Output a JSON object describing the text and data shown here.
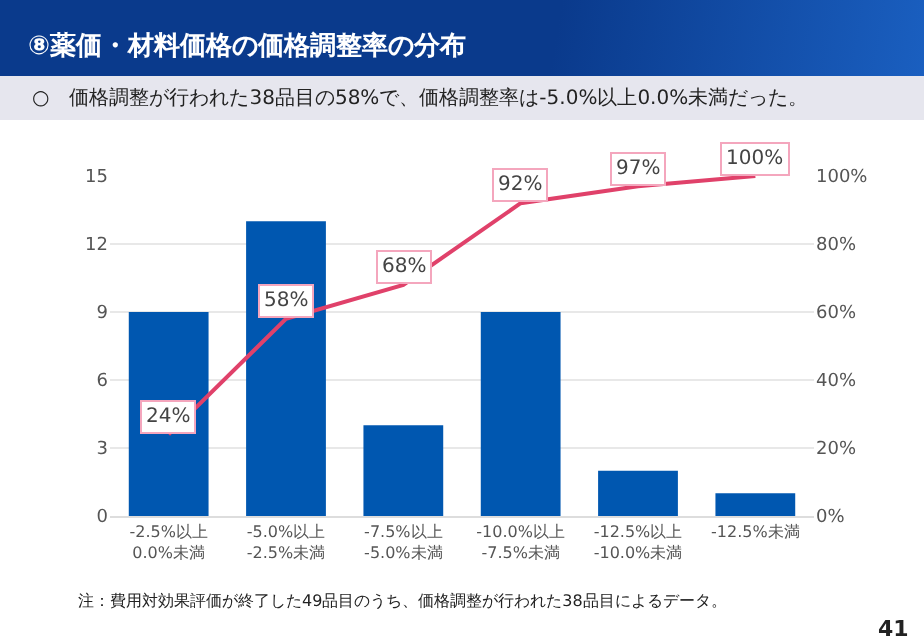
{
  "chart_data": {
    "type": "bar",
    "title": "⑧薬価・材料価格の価格調整率の分布",
    "subtitle": "○　価格調整が行われた38品目の58%で、価格調整率は-5.0%以上0.0%未満だった。",
    "categories": [
      "-2.5%以上\n0.0%未満",
      "-5.0%以上\n-2.5%未満",
      "-7.5%以上\n-5.0%未満",
      "-10.0%以上\n-7.5%未満",
      "-12.5%以上\n-10.0%未満",
      "-12.5%未満"
    ],
    "series": [
      {
        "color": "#0057b0",
        "values": [
          9,
          13,
          4,
          9,
          2,
          1
        ]
      },
      {
        "type": "line",
        "axis": "y2",
        "color": "#e0416a",
        "values": [
          24,
          58,
          68,
          92,
          97,
          100
        ],
        "value_labels": [
          "24%",
          "58%",
          "68%",
          "92%",
          "97%",
          "100%"
        ]
      }
    ],
    "ylim": [
      0,
      15
    ],
    "yticks": [
      0,
      3,
      6,
      9,
      12,
      15
    ],
    "y2lim": [
      0,
      100
    ],
    "y2ticks": [
      {
        "value": 0,
        "label": "0%"
      },
      {
        "value": 20,
        "label": "20%"
      },
      {
        "value": 40,
        "label": "40%"
      },
      {
        "value": 60,
        "label": "60%"
      },
      {
        "value": 80,
        "label": "80%"
      },
      {
        "value": 100,
        "label": "100%"
      }
    ],
    "grid": "y",
    "legend": false,
    "marker": "none",
    "line_style": "solid",
    "annotations": [
      "注：費用対効果評価が終了した49品目のうち、価格調整が行われた38品目によるデータ。",
      "41"
    ]
  }
}
